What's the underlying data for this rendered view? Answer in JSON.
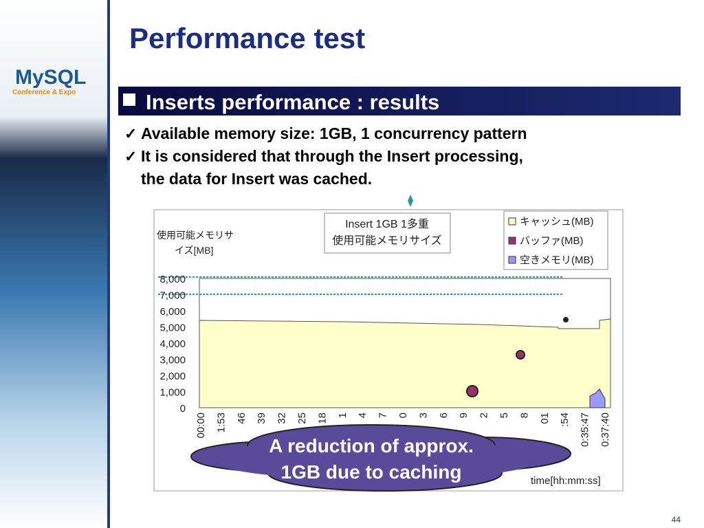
{
  "header": {
    "logo": "MySQL",
    "logo_sub": "Conference & Expo",
    "title": "Performance test"
  },
  "section": {
    "heading": "Inserts performance : results"
  },
  "bullets": [
    {
      "lines": [
        "Available memory size: 1GB, 1 concurrency pattern"
      ]
    },
    {
      "lines": [
        "It is considered that through the Insert processing,",
        "the data for Insert was cached."
      ]
    }
  ],
  "figure": {
    "title_lines": [
      "Insert 1GB 1多重",
      "使用可能メモリサイズ"
    ],
    "y_label_lines": [
      "使用可能メモリサ",
      "イズ[MB]"
    ],
    "yticks": [
      "8,000",
      "7,000",
      "6,000",
      "5,000",
      "4,000",
      "3,000",
      "2,000",
      "1,000",
      "0"
    ],
    "xticks": [
      "00:00",
      "1:53",
      "46",
      "39",
      "32",
      "25",
      "18",
      "1",
      "4",
      "7",
      "0",
      "3",
      "6",
      "9",
      "2",
      "5",
      "8",
      "01",
      ":54",
      "0:35:47",
      "0:37:40"
    ],
    "x_label": "time[hh:mm:ss]",
    "legend": [
      "キャッシュ(MB)",
      "バッファ(MB)",
      "空きメモリ(MB)"
    ]
  },
  "callout": {
    "lines": [
      "A reduction of approx.",
      "1GB due to caching"
    ]
  },
  "page_number": "44"
}
